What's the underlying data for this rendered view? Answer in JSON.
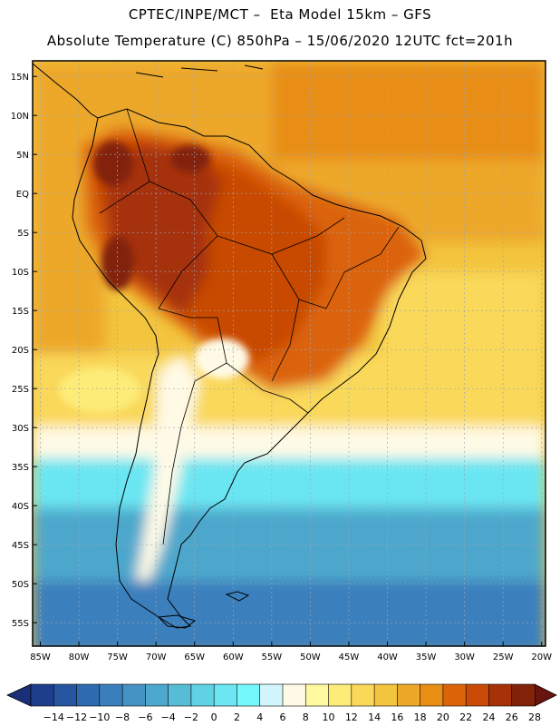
{
  "header": {
    "line1": "CPTEC/INPE/MCT –  Eta Model 15km – GFS",
    "line2": "Absolute Temperature (C) 850hPa – 15/06/2020 12UTC fct=201h"
  },
  "map": {
    "lat_labels": [
      "15N",
      "10N",
      "5N",
      "EQ",
      "5S",
      "10S",
      "15S",
      "20S",
      "25S",
      "30S",
      "35S",
      "40S",
      "45S",
      "50S",
      "55S"
    ],
    "lat_values": [
      15,
      10,
      5,
      0,
      -5,
      -10,
      -15,
      -20,
      -25,
      -30,
      -35,
      -40,
      -45,
      -50,
      -55
    ],
    "lon_labels": [
      "85W",
      "80W",
      "75W",
      "70W",
      "65W",
      "60W",
      "55W",
      "50W",
      "45W",
      "40W",
      "35W",
      "30W",
      "25W",
      "20W"
    ],
    "lon_values": [
      -85,
      -80,
      -75,
      -70,
      -65,
      -60,
      -55,
      -50,
      -45,
      -40,
      -35,
      -30,
      -25,
      -20
    ],
    "lon_range": [
      -86,
      -19.5
    ],
    "lat_range": [
      -58,
      17
    ]
  },
  "colorbar": {
    "units": "C",
    "labels": [
      "-14",
      "-12",
      "-10",
      "-8",
      "-6",
      "-4",
      "-2",
      "0",
      "2",
      "4",
      "6",
      "8",
      "10",
      "12",
      "14",
      "16",
      "18",
      "20",
      "22",
      "24",
      "26",
      "28"
    ],
    "colors": [
      "#1e3e8c",
      "#2656a0",
      "#2e6bb0",
      "#3a7fbd",
      "#4593c4",
      "#4ea7cc",
      "#57bcd6",
      "#5fd2e4",
      "#6be6f2",
      "#74f8fc",
      "#d2f6fc",
      "#fffae6",
      "#fffaa0",
      "#fdec78",
      "#f9d85a",
      "#f3c43e",
      "#eda82a",
      "#e88e14",
      "#dc6408",
      "#c84a06",
      "#a63207",
      "#822208"
    ],
    "left_tri_color": "#1b2f78",
    "right_tri_color": "#6a1410"
  },
  "legend": {
    "colors": {
      "warm_max": "#822208",
      "warm": "#a63207",
      "orange": "#dc6408",
      "amber": "#eda82a",
      "yellow": "#f9d85a",
      "cream": "#fffae6",
      "cyan": "#74f8fc",
      "blue": "#4ea7cc",
      "deep_blue": "#2e6bb0",
      "grid": "#9aa7b4"
    }
  }
}
